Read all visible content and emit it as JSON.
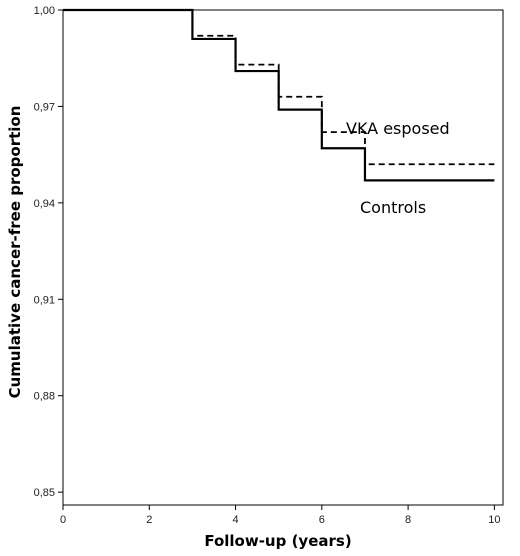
{
  "chart_data": {
    "type": "line",
    "title": "",
    "xlabel": "Follow-up (years)",
    "ylabel": "Cumulative cancer-free proportion",
    "xlim": [
      0,
      10.2
    ],
    "ylim": [
      0.846,
      1.0
    ],
    "x_ticks": [
      "0",
      "2",
      "4",
      "6",
      "8",
      "10"
    ],
    "y_ticks": [
      "1,00",
      "0,97",
      "0,94",
      "0,91",
      "0,88",
      "0,85"
    ],
    "grid": false,
    "legend": "none",
    "series": [
      {
        "name": "Controls",
        "style": "solid",
        "color": "#000000",
        "x": [
          0,
          3,
          4,
          5,
          6,
          7,
          10
        ],
        "y": [
          1.0,
          0.991,
          0.981,
          0.969,
          0.957,
          0.947,
          0.947
        ]
      },
      {
        "name": "VKA esposed",
        "style": "dashed",
        "color": "#000000",
        "x": [
          0,
          3,
          4,
          5,
          6,
          7,
          10
        ],
        "y": [
          1.0,
          0.992,
          0.983,
          0.973,
          0.962,
          0.952,
          0.952
        ]
      }
    ]
  }
}
